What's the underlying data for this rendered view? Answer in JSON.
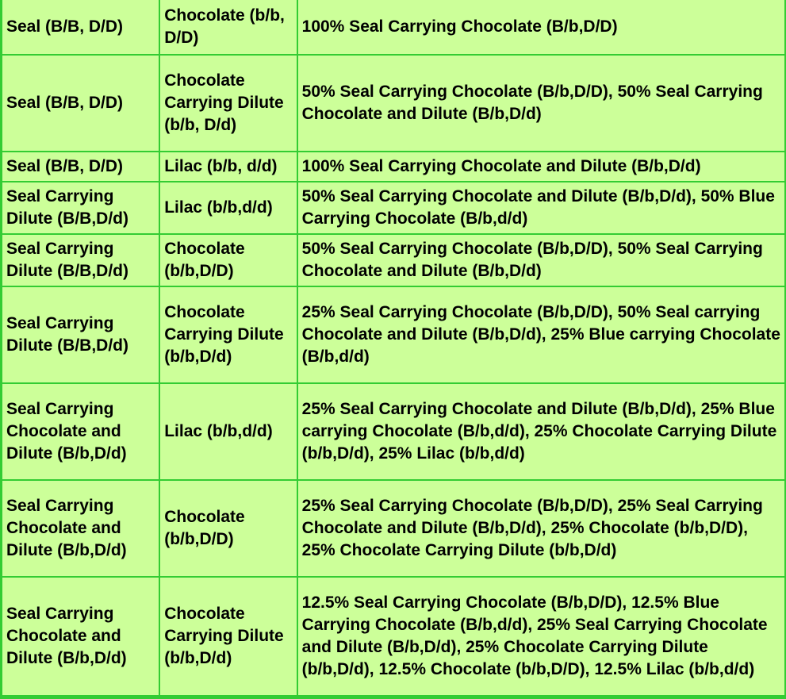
{
  "rows": [
    {
      "parent1": "Seal (B/B, D/D)",
      "parent2": "Chocolate (b/b, D/D)",
      "offspring": "100% Seal Carrying Chocolate (B/b,D/D)"
    },
    {
      "parent1": "Seal (B/B, D/D)",
      "parent2": "Chocolate Carrying Dilute (b/b, D/d)",
      "offspring": "50% Seal Carrying Chocolate (B/b,D/D), 50% Seal Carrying Chocolate and Dilute (B/b,D/d)"
    },
    {
      "parent1": "Seal (B/B, D/D)",
      "parent2": "Lilac (b/b, d/d)",
      "offspring": "100% Seal Carrying Chocolate and Dilute (B/b,D/d)"
    },
    {
      "parent1": "Seal Carrying Dilute (B/B,D/d)",
      "parent2": "Lilac (b/b,d/d)",
      "offspring": "50% Seal Carrying Chocolate and Dilute (B/b,D/d), 50% Blue Carrying Chocolate (B/b,d/d)"
    },
    {
      "parent1": "Seal Carrying Dilute (B/B,D/d)",
      "parent2": "Chocolate (b/b,D/D)",
      "offspring": "50% Seal Carrying Chocolate (B/b,D/D), 50% Seal Carrying Chocolate and Dilute (B/b,D/d)"
    },
    {
      "parent1": "Seal Carrying Dilute (B/B,D/d)",
      "parent2": "Chocolate Carrying Dilute (b/b,D/d)",
      "offspring": "25% Seal Carrying Chocolate (B/b,D/D), 50% Seal carrying Chocolate and Dilute (B/b,D/d), 25% Blue carrying Chocolate (B/b,d/d)"
    },
    {
      "parent1": "Seal Carrying Chocolate and Dilute (B/b,D/d)",
      "parent2": "Lilac (b/b,d/d)",
      "offspring": "25% Seal Carrying Chocolate and Dilute (B/b,D/d), 25% Blue carrying Chocolate (B/b,d/d), 25% Chocolate Carrying Dilute (b/b,D/d), 25% Lilac (b/b,d/d)"
    },
    {
      "parent1": "Seal Carrying Chocolate and Dilute (B/b,D/d)",
      "parent2": "Chocolate (b/b,D/D)",
      "offspring": "25% Seal Carrying Chocolate (B/b,D/D), 25% Seal Carrying Chocolate and Dilute (B/b,D/d), 25% Chocolate (b/b,D/D), 25% Chocolate Carrying Dilute (b/b,D/d)"
    },
    {
      "parent1": "Seal Carrying Chocolate and Dilute (B/b,D/d)",
      "parent2": "Chocolate Carrying Dilute (b/b,D/d)",
      "offspring": "12.5% Seal Carrying Chocolate (B/b,D/D), 12.5% Blue Carrying Chocolate (B/b,d/d), 25% Seal Carrying Chocolate and Dilute (B/b,D/d), 25% Chocolate Carrying Dilute (b/b,D/d), 12.5% Chocolate (b/b,D/D), 12.5% Lilac (b/b,d/d)"
    }
  ],
  "colors": {
    "cell_background": "#ccff99",
    "border": "#33cc33"
  }
}
